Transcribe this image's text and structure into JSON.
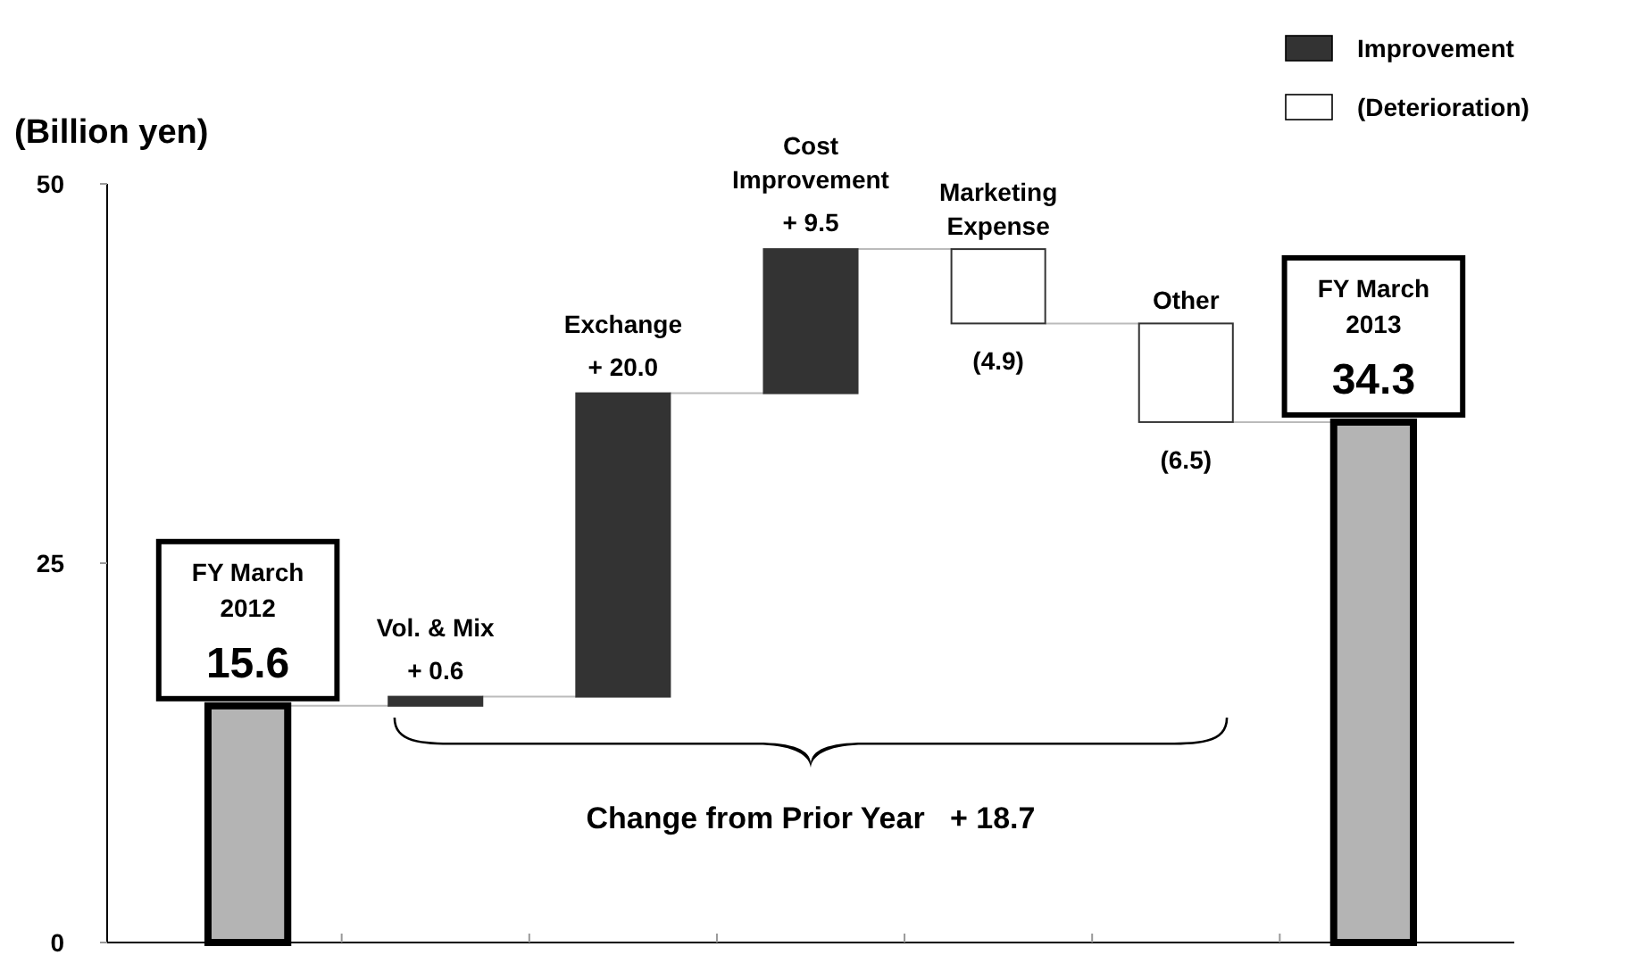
{
  "chart_data": {
    "type": "bar",
    "ylabel": "(Billion yen)",
    "categories": [
      "FY March\n2012",
      "Vol. & Mix",
      "Exchange",
      "Cost\nImprovement",
      "Marketing\nExpense",
      "Other",
      "FY March\n2013"
    ],
    "series": [
      {
        "color": "#b4b4b4",
        "values": [
          15.6,
          null,
          null,
          null,
          null,
          null,
          34.3
        ],
        "base": [
          0,
          null,
          null,
          null,
          null,
          null,
          0
        ],
        "value_labels": [
          "15.6",
          null,
          null,
          null,
          null,
          null,
          "34.3"
        ]
      },
      {
        "name": "Improvement",
        "color": "#333333",
        "values": [
          null,
          0.6,
          20.0,
          9.5,
          null,
          null,
          null
        ],
        "base": [
          null,
          15.6,
          16.2,
          36.2,
          null,
          null,
          null
        ],
        "value_labels": [
          null,
          "+ 0.6",
          "+ 20.0",
          "+ 9.5",
          null,
          null,
          null
        ]
      },
      {
        "name": "(Deterioration)",
        "color": "#ffffff",
        "values": [
          null,
          null,
          null,
          null,
          -4.9,
          -6.5,
          null
        ],
        "base": [
          null,
          null,
          null,
          null,
          45.7,
          40.8,
          null
        ],
        "value_labels": [
          null,
          null,
          null,
          null,
          "(4.9)",
          "(6.5)",
          null
        ]
      }
    ],
    "ylim": [
      0,
      50
    ],
    "yticks": [
      0,
      25,
      50
    ],
    "grid": false,
    "legend": "top right",
    "annotations": [
      "Change from Prior Year   + 18.7"
    ]
  }
}
